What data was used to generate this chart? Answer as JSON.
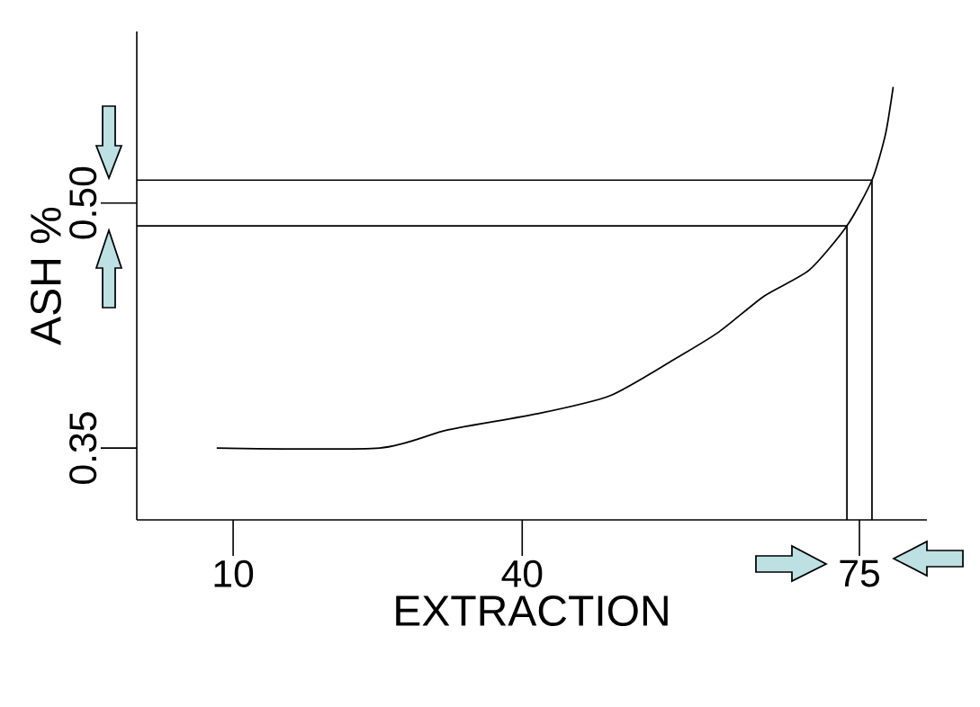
{
  "chart_data": {
    "type": "line",
    "xlabel": "EXTRACTION",
    "ylabel": "ASH %",
    "xlim": [
      0,
      82
    ],
    "ylim": [
      0.306,
      0.605
    ],
    "xticks": [
      10,
      40,
      75
    ],
    "yticks": [
      0.35,
      {
        "value": 0.5,
        "label": "0.50"
      }
    ],
    "marker": "none",
    "series": [
      {
        "color": "#000000",
        "x": [
          8.3,
          25.2,
          32.2,
          41.6,
          49.1,
          55.7,
          60.4,
          65.1,
          69.8,
          73.7,
          76.3,
          77.7,
          78.5
        ],
        "values": [
          0.35,
          0.35,
          0.361,
          0.371,
          0.382,
          0.404,
          0.421,
          0.443,
          0.459,
          0.486,
          0.514,
          0.542,
          0.571
        ]
      },
      {
        "color": "#000000",
        "x": [
          0,
          73.7,
          73.7
        ],
        "values": [
          0.486,
          0.486,
          0.306
        ]
      },
      {
        "color": "#000000",
        "x": [
          0,
          76.3,
          76.3
        ],
        "values": [
          0.514,
          0.514,
          0.306
        ]
      }
    ]
  }
}
